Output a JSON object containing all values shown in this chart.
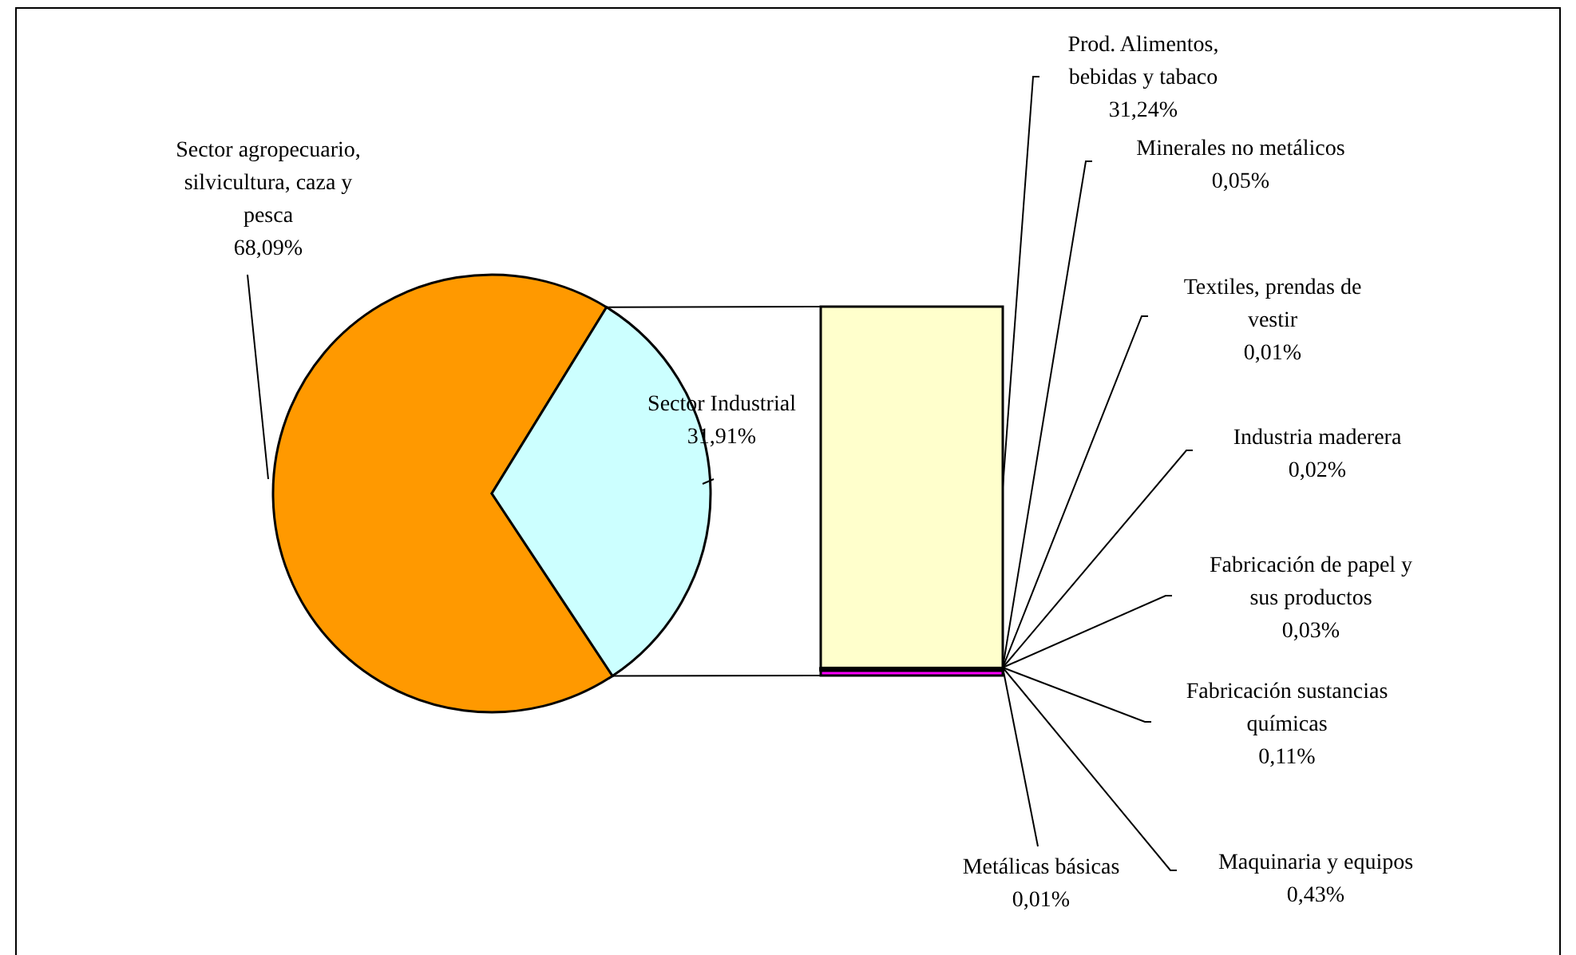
{
  "chart_data": [
    {
      "type": "pie",
      "categories": [
        "Sector agropecuario, silvicultura, caza y pesca",
        "Sector Industrial"
      ],
      "values": [
        68.09,
        31.91
      ],
      "colors": [
        "#ff9900",
        "#ccffff"
      ],
      "value_labels": [
        "68,09%",
        "31,91%"
      ]
    },
    {
      "type": "other",
      "categories": [
        "Maquinaria y equipos",
        "Metálicas básicas",
        "Fabricación sustancias químicas",
        "Fabricación de papel y sus productos",
        "Industria maderera",
        "Textiles, prendas de vestir",
        "Minerales no metálicos",
        "Prod. Alimentos, bebidas y tabaco"
      ],
      "values": [
        0.43,
        0.01,
        0.11,
        0.03,
        0.02,
        0.01,
        0.05,
        31.24
      ],
      "colors": [
        "#ff00ff",
        "#000000",
        "#000000",
        "#000000",
        "#000000",
        "#000000",
        "#000000",
        "#ffffcc"
      ],
      "value_labels": [
        "0,43%",
        "0,01%",
        "0,11%",
        "0,03%",
        "0,02%",
        "0,01%",
        "0,05%",
        "31,24%"
      ]
    }
  ]
}
